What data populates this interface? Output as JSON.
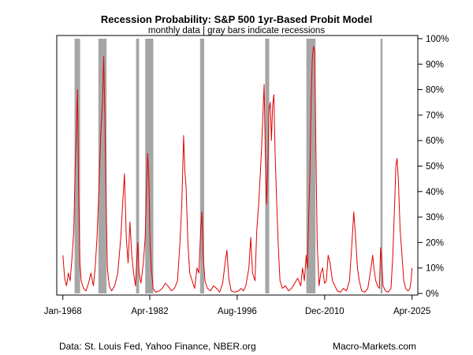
{
  "chart_data": {
    "type": "line",
    "title": "Recession Probability: S&P 500 1yr-Based Probit Model",
    "subtitle": "monthly data | gray bars indicate recessions",
    "xlabel": "",
    "ylabel": "",
    "xlim": [
      1967.0,
      2026.2
    ],
    "ylim": [
      0,
      100
    ],
    "x_ticks": [
      {
        "value": 1968.0,
        "label": "Jan-1968"
      },
      {
        "value": 1982.25,
        "label": "Apr-1982"
      },
      {
        "value": 1996.58,
        "label": "Aug-1996"
      },
      {
        "value": 2010.92,
        "label": "Dec-2010"
      },
      {
        "value": 2025.25,
        "label": "Apr-2025"
      }
    ],
    "y_ticks": [
      {
        "value": 0,
        "label": "0%"
      },
      {
        "value": 10,
        "label": "10%"
      },
      {
        "value": 20,
        "label": "20%"
      },
      {
        "value": 30,
        "label": "30%"
      },
      {
        "value": 40,
        "label": "40%"
      },
      {
        "value": 50,
        "label": "50%"
      },
      {
        "value": 60,
        "label": "60%"
      },
      {
        "value": 70,
        "label": "70%"
      },
      {
        "value": 80,
        "label": "80%"
      },
      {
        "value": 90,
        "label": "90%"
      },
      {
        "value": 100,
        "label": "100%"
      }
    ],
    "recessions": [
      {
        "start": 1969.92,
        "end": 1970.83
      },
      {
        "start": 1973.83,
        "end": 1975.17
      },
      {
        "start": 1980.0,
        "end": 1980.5
      },
      {
        "start": 1981.5,
        "end": 1982.83
      },
      {
        "start": 1990.5,
        "end": 1991.17
      },
      {
        "start": 2001.17,
        "end": 2001.83
      },
      {
        "start": 2007.92,
        "end": 2009.42
      },
      {
        "start": 2020.08,
        "end": 2020.33
      }
    ],
    "series": [
      {
        "name": "Recession probability",
        "color": "#e00000",
        "points": [
          [
            1968.0,
            15
          ],
          [
            1968.3,
            6
          ],
          [
            1968.6,
            3
          ],
          [
            1968.9,
            8
          ],
          [
            1969.2,
            5
          ],
          [
            1969.5,
            14
          ],
          [
            1969.8,
            25
          ],
          [
            1970.0,
            48
          ],
          [
            1970.2,
            62
          ],
          [
            1970.4,
            80
          ],
          [
            1970.6,
            38
          ],
          [
            1970.8,
            12
          ],
          [
            1971.0,
            5
          ],
          [
            1971.4,
            2
          ],
          [
            1971.8,
            1
          ],
          [
            1972.2,
            4
          ],
          [
            1972.6,
            8
          ],
          [
            1973.0,
            3
          ],
          [
            1973.3,
            10
          ],
          [
            1973.6,
            22
          ],
          [
            1973.9,
            40
          ],
          [
            1974.2,
            62
          ],
          [
            1974.5,
            75
          ],
          [
            1974.7,
            93
          ],
          [
            1974.9,
            68
          ],
          [
            1975.1,
            35
          ],
          [
            1975.3,
            10
          ],
          [
            1975.6,
            3
          ],
          [
            1976.0,
            1
          ],
          [
            1976.5,
            3
          ],
          [
            1977.0,
            8
          ],
          [
            1977.5,
            22
          ],
          [
            1977.8,
            35
          ],
          [
            1978.1,
            47
          ],
          [
            1978.4,
            22
          ],
          [
            1978.7,
            12
          ],
          [
            1979.0,
            28
          ],
          [
            1979.3,
            15
          ],
          [
            1979.6,
            8
          ],
          [
            1979.9,
            3
          ],
          [
            1980.1,
            12
          ],
          [
            1980.3,
            20
          ],
          [
            1980.5,
            8
          ],
          [
            1980.8,
            4
          ],
          [
            1981.2,
            12
          ],
          [
            1981.5,
            22
          ],
          [
            1981.7,
            40
          ],
          [
            1981.9,
            55
          ],
          [
            1982.1,
            45
          ],
          [
            1982.3,
            20
          ],
          [
            1982.5,
            10
          ],
          [
            1982.8,
            2
          ],
          [
            1983.2,
            0.5
          ],
          [
            1983.8,
            1
          ],
          [
            1984.3,
            2
          ],
          [
            1984.8,
            4
          ],
          [
            1985.2,
            3
          ],
          [
            1985.8,
            1
          ],
          [
            1986.3,
            2
          ],
          [
            1986.8,
            5
          ],
          [
            1987.2,
            20
          ],
          [
            1987.5,
            35
          ],
          [
            1987.8,
            62
          ],
          [
            1988.0,
            48
          ],
          [
            1988.2,
            42
          ],
          [
            1988.5,
            20
          ],
          [
            1988.8,
            8
          ],
          [
            1989.2,
            5
          ],
          [
            1989.6,
            2
          ],
          [
            1990.0,
            10
          ],
          [
            1990.3,
            8
          ],
          [
            1990.6,
            25
          ],
          [
            1990.8,
            32
          ],
          [
            1991.0,
            15
          ],
          [
            1991.3,
            5
          ],
          [
            1991.7,
            2
          ],
          [
            1992.2,
            1
          ],
          [
            1992.7,
            3
          ],
          [
            1993.2,
            2
          ],
          [
            1993.7,
            0.5
          ],
          [
            1994.2,
            4
          ],
          [
            1994.6,
            12
          ],
          [
            1994.9,
            17
          ],
          [
            1995.2,
            6
          ],
          [
            1995.6,
            1
          ],
          [
            1996.2,
            0.5
          ],
          [
            1996.8,
            1
          ],
          [
            1997.2,
            2
          ],
          [
            1997.6,
            1
          ],
          [
            1998.0,
            3
          ],
          [
            1998.5,
            10
          ],
          [
            1998.8,
            22
          ],
          [
            1999.1,
            8
          ],
          [
            1999.5,
            5
          ],
          [
            1999.8,
            25
          ],
          [
            2000.1,
            35
          ],
          [
            2000.4,
            48
          ],
          [
            2000.6,
            58
          ],
          [
            2000.8,
            70
          ],
          [
            2001.0,
            82
          ],
          [
            2001.2,
            55
          ],
          [
            2001.4,
            35
          ],
          [
            2001.6,
            48
          ],
          [
            2001.8,
            72
          ],
          [
            2002.0,
            75
          ],
          [
            2002.2,
            60
          ],
          [
            2002.4,
            74
          ],
          [
            2002.6,
            78
          ],
          [
            2002.8,
            55
          ],
          [
            2003.0,
            40
          ],
          [
            2003.3,
            20
          ],
          [
            2003.6,
            5
          ],
          [
            2004.0,
            2
          ],
          [
            2004.5,
            3
          ],
          [
            2005.0,
            1
          ],
          [
            2005.5,
            2
          ],
          [
            2006.0,
            4
          ],
          [
            2006.5,
            6
          ],
          [
            2007.0,
            3
          ],
          [
            2007.3,
            10
          ],
          [
            2007.6,
            5
          ],
          [
            2007.9,
            15
          ],
          [
            2008.1,
            10
          ],
          [
            2008.3,
            30
          ],
          [
            2008.5,
            45
          ],
          [
            2008.7,
            75
          ],
          [
            2008.9,
            92
          ],
          [
            2009.1,
            97
          ],
          [
            2009.3,
            95
          ],
          [
            2009.5,
            55
          ],
          [
            2009.7,
            20
          ],
          [
            2010.0,
            3
          ],
          [
            2010.3,
            8
          ],
          [
            2010.6,
            10
          ],
          [
            2010.9,
            4
          ],
          [
            2011.2,
            5
          ],
          [
            2011.5,
            15
          ],
          [
            2011.8,
            12
          ],
          [
            2012.2,
            5
          ],
          [
            2012.6,
            3
          ],
          [
            2013.0,
            1
          ],
          [
            2013.5,
            0.5
          ],
          [
            2014.0,
            2
          ],
          [
            2014.5,
            1
          ],
          [
            2015.0,
            5
          ],
          [
            2015.4,
            20
          ],
          [
            2015.7,
            32
          ],
          [
            2016.0,
            22
          ],
          [
            2016.3,
            10
          ],
          [
            2016.6,
            5
          ],
          [
            2017.0,
            1
          ],
          [
            2017.5,
            0.5
          ],
          [
            2018.0,
            2
          ],
          [
            2018.4,
            8
          ],
          [
            2018.8,
            15
          ],
          [
            2019.0,
            10
          ],
          [
            2019.3,
            5
          ],
          [
            2019.6,
            3
          ],
          [
            2019.9,
            2
          ],
          [
            2020.1,
            18
          ],
          [
            2020.3,
            12
          ],
          [
            2020.5,
            3
          ],
          [
            2020.9,
            1
          ],
          [
            2021.3,
            0.5
          ],
          [
            2021.8,
            2
          ],
          [
            2022.1,
            15
          ],
          [
            2022.4,
            35
          ],
          [
            2022.6,
            50
          ],
          [
            2022.8,
            53
          ],
          [
            2023.0,
            45
          ],
          [
            2023.3,
            25
          ],
          [
            2023.6,
            15
          ],
          [
            2023.9,
            5
          ],
          [
            2024.2,
            2
          ],
          [
            2024.6,
            1
          ],
          [
            2024.9,
            2
          ],
          [
            2025.1,
            5
          ],
          [
            2025.25,
            10
          ]
        ]
      }
    ],
    "grid": false
  },
  "footer": {
    "source": "Data: St. Louis Fed, Yahoo Finance, NBER.org",
    "brand": "Macro-Markets.com"
  },
  "colors": {
    "line": "#e00000",
    "recession_bar": "#a6a6a6",
    "axis": "#000000"
  }
}
